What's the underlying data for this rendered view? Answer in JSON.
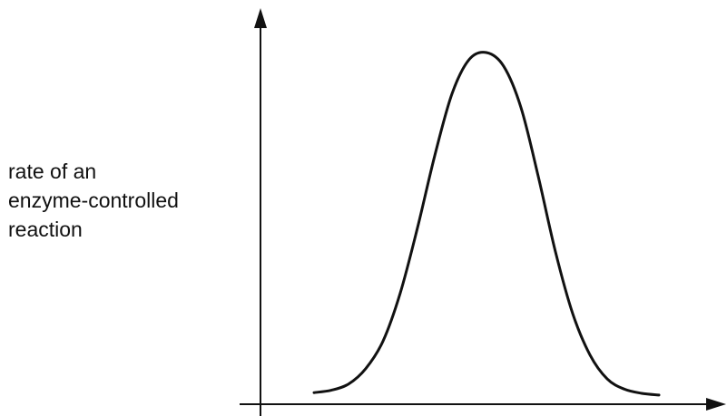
{
  "chart_data": {
    "type": "line",
    "title": "",
    "xlabel": "",
    "ylabel_lines": [
      "rate of an",
      "enzyme-controlled",
      "reaction"
    ],
    "x_tick_labels": [],
    "y_tick_labels": [],
    "grid": false,
    "legend": "none",
    "xlim": [
      0,
      1
    ],
    "ylim": [
      0,
      1
    ],
    "series": [
      {
        "x": [
          0,
          0.05,
          0.1,
          0.15,
          0.2,
          0.25,
          0.3,
          0.35,
          0.4,
          0.45,
          0.5,
          0.55,
          0.6,
          0.65,
          0.7,
          0.75,
          0.8,
          0.85,
          0.9,
          0.95,
          1
        ],
        "y": [
          0.01,
          0.017,
          0.035,
          0.08,
          0.16,
          0.3,
          0.49,
          0.7,
          0.88,
          0.98,
          1.0,
          0.96,
          0.84,
          0.64,
          0.42,
          0.24,
          0.12,
          0.05,
          0.02,
          0.008,
          0.003
        ]
      }
    ],
    "colors": {
      "axis": "#111111",
      "curve": "#111111"
    }
  }
}
